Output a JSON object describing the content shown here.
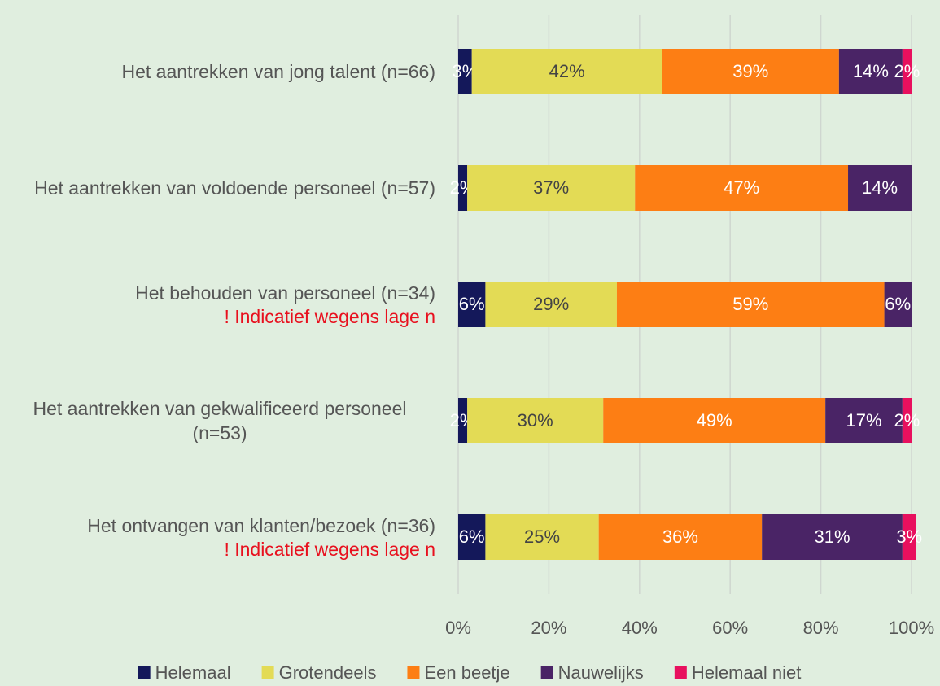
{
  "chart_data": {
    "type": "stacked_barh",
    "categories": [
      "Het aantrekken van jong talent (n=66)",
      "Het aantrekken van voldoende personeel (n=57)",
      "Het behouden van personeel (n=34)",
      "Het aantrekken van gekwalificeerd personeel (n=53)",
      "Het ontvangen van klanten/bezoek (n=36)"
    ],
    "category_notes": [
      null,
      null,
      "! Indicatief wegens lage n",
      null,
      "! Indicatief wegens lage n"
    ],
    "series": [
      {
        "name": "Helemaal",
        "color": "#14185a",
        "label_color": "#ffffff",
        "values": [
          3,
          2,
          6,
          2,
          6
        ],
        "value_labels": [
          "3%",
          "2%",
          "6%",
          "2%",
          "6%"
        ]
      },
      {
        "name": "Grotendeels",
        "color": "#e3db55",
        "label_color": "#444444",
        "values": [
          42,
          37,
          29,
          30,
          25
        ],
        "value_labels": [
          "42%",
          "37%",
          "29%",
          "30%",
          "25%"
        ]
      },
      {
        "name": "Een beetje",
        "color": "#fd7e14",
        "label_color": "#ffffff",
        "values": [
          39,
          47,
          59,
          49,
          36
        ],
        "value_labels": [
          "39%",
          "47%",
          "59%",
          "49%",
          "36%"
        ]
      },
      {
        "name": "Nauwelijks",
        "color": "#4a2466",
        "label_color": "#ffffff",
        "values": [
          14,
          14,
          6,
          17,
          31
        ],
        "value_labels": [
          "14%",
          "14%",
          "6%",
          "17%",
          "31%"
        ]
      },
      {
        "name": "Helemaal niet",
        "color": "#e8105e",
        "label_color": "#ffffff",
        "values": [
          2,
          null,
          null,
          2,
          3
        ],
        "value_labels": [
          "2%",
          null,
          null,
          "2%",
          "3%"
        ]
      }
    ],
    "xlim": [
      0,
      100
    ],
    "xticks": [
      {
        "value": 0,
        "label": "0%"
      },
      {
        "value": 20,
        "label": "20%"
      },
      {
        "value": 40,
        "label": "40%"
      },
      {
        "value": 60,
        "label": "60%"
      },
      {
        "value": 80,
        "label": "80%"
      },
      {
        "value": 100,
        "label": "100%"
      }
    ],
    "grid": true,
    "legend": "bottom"
  }
}
